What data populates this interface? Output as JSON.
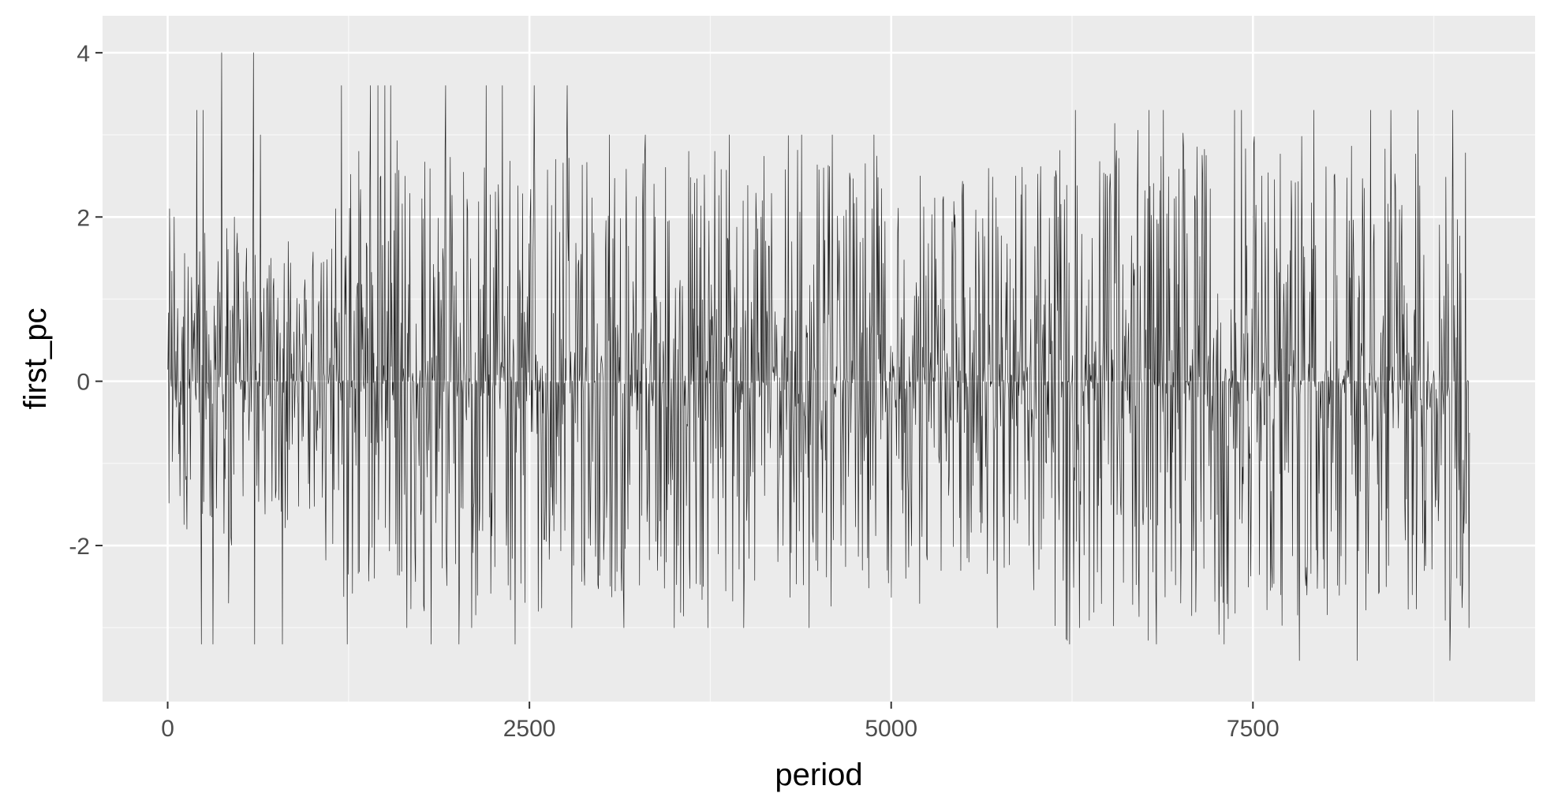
{
  "colors": {
    "panel_background": "#ebebeb",
    "grid_major": "#ffffff",
    "grid_minor": "#f7f7f7",
    "line": "#000000",
    "tick_text": "#4d4d4d",
    "axis_title_text": "#000000"
  },
  "chart_data": {
    "type": "line",
    "title": "",
    "xlabel": "period",
    "ylabel": "first_pc",
    "xlim": [
      -450,
      9450
    ],
    "ylim": [
      -3.9,
      4.45
    ],
    "x_ticks": [
      0,
      2500,
      5000,
      7500
    ],
    "x_tick_labels": [
      "0",
      "2500",
      "5000",
      "7500"
    ],
    "y_ticks": [
      -2,
      0,
      2,
      4
    ],
    "y_tick_labels": [
      "-2",
      "0",
      "2",
      "4"
    ],
    "x_range": [
      1,
      9000
    ],
    "grid": true,
    "legend": "none",
    "series": [
      {
        "peaks": [
          [
            10,
            2.1
          ],
          [
            45,
            2.0
          ],
          [
            130,
            -1.8
          ],
          [
            200,
            3.3
          ],
          [
            245,
            3.3
          ],
          [
            230,
            -3.2
          ],
          [
            310,
            -3.2
          ],
          [
            370,
            4.0
          ],
          [
            420,
            -2.7
          ],
          [
            460,
            2.0
          ],
          [
            590,
            4.0
          ],
          [
            600,
            -3.2
          ],
          [
            640,
            3.0
          ],
          [
            790,
            -3.2
          ],
          [
            830,
            1.7
          ],
          [
            1040,
            0.9
          ],
          [
            1160,
            2.1
          ],
          [
            1200,
            3.6
          ],
          [
            1240,
            -3.2
          ],
          [
            1320,
            2.8
          ],
          [
            1400,
            3.6
          ],
          [
            1450,
            3.6
          ],
          [
            1500,
            3.6
          ],
          [
            1540,
            3.6
          ],
          [
            1650,
            -3.0
          ],
          [
            1820,
            -3.2
          ],
          [
            1920,
            3.6
          ],
          [
            2010,
            -3.2
          ],
          [
            2100,
            -3.0
          ],
          [
            2200,
            3.6
          ],
          [
            2310,
            3.6
          ],
          [
            2400,
            -3.2
          ],
          [
            2530,
            3.6
          ],
          [
            2560,
            -2.8
          ],
          [
            2760,
            3.6
          ],
          [
            2790,
            -3.0
          ],
          [
            3050,
            3.0
          ],
          [
            3150,
            -3.0
          ],
          [
            3300,
            3.0
          ],
          [
            3500,
            -3.0
          ],
          [
            3600,
            2.8
          ],
          [
            3730,
            -3.0
          ],
          [
            3780,
            2.8
          ],
          [
            3880,
            3.0
          ],
          [
            3980,
            -3.0
          ],
          [
            4100,
            2.0
          ],
          [
            4250,
            -2.0
          ],
          [
            4380,
            3.0
          ],
          [
            4430,
            -3.0
          ],
          [
            4590,
            3.0
          ],
          [
            4650,
            -2.0
          ],
          [
            4800,
            -2.3
          ],
          [
            4880,
            3.0
          ],
          [
            5100,
            -2.4
          ],
          [
            5200,
            2.5
          ],
          [
            5500,
            2.4
          ],
          [
            5730,
            -3.0
          ],
          [
            5860,
            2.5
          ],
          [
            5950,
            -2.0
          ],
          [
            6150,
            2.0
          ],
          [
            6230,
            -3.2
          ],
          [
            6270,
            3.3
          ],
          [
            6300,
            -3.0
          ],
          [
            6490,
            2.5
          ],
          [
            6780,
            3.3
          ],
          [
            6830,
            -3.2
          ],
          [
            6880,
            3.3
          ],
          [
            7000,
            -2.7
          ],
          [
            7150,
            2.5
          ],
          [
            7300,
            -3.2
          ],
          [
            7370,
            3.3
          ],
          [
            7420,
            3.3
          ],
          [
            7560,
            2.5
          ],
          [
            7690,
            -2.6
          ],
          [
            7820,
            -3.4
          ],
          [
            7920,
            3.3
          ],
          [
            8060,
            2.5
          ],
          [
            8220,
            -3.4
          ],
          [
            8310,
            3.3
          ],
          [
            8450,
            3.3
          ],
          [
            8600,
            -2.6
          ],
          [
            8640,
            3.3
          ],
          [
            8780,
            -1.7
          ],
          [
            8860,
            -3.4
          ],
          [
            8880,
            3.3
          ],
          [
            8960,
            -1.6
          ],
          [
            8990,
            -3.0
          ]
        ],
        "amplitude_profile": [
          [
            0,
            1.3
          ],
          [
            1000,
            1.2
          ],
          [
            1300,
            1.9
          ],
          [
            4000,
            1.8
          ],
          [
            4300,
            1.9
          ],
          [
            5600,
            1.6
          ],
          [
            6200,
            2.0
          ],
          [
            9000,
            1.9
          ]
        ]
      }
    ]
  }
}
